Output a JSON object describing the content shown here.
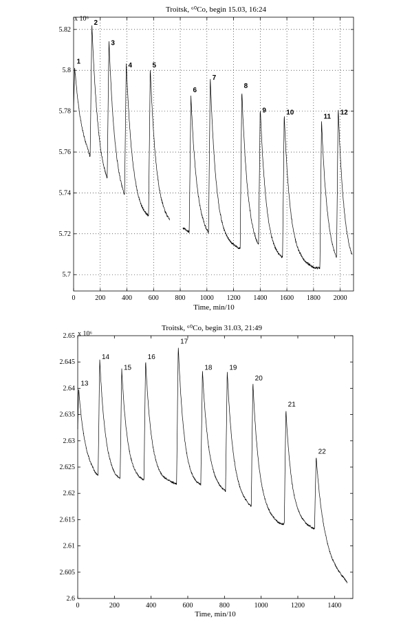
{
  "chart_data": [
    {
      "type": "line",
      "title": "Troitsk, ⁶⁰Co, begin 15.03, 16:24",
      "exponent_label": "x 10⁶",
      "xlabel": "Time, min/10",
      "ylabel": "",
      "xlim": [
        0,
        2100
      ],
      "ylim": [
        5.692,
        5.826
      ],
      "x_ticks": [
        0,
        200,
        400,
        600,
        800,
        1000,
        1200,
        1400,
        1600,
        1800,
        2000
      ],
      "y_ticks": [
        5.7,
        5.72,
        5.74,
        5.76,
        5.78,
        5.8,
        5.82
      ],
      "y_tick_labels": [
        "5.7",
        "5.72",
        "5.74",
        "5.76",
        "5.78",
        "5.8",
        "5.82"
      ],
      "grid": true,
      "gaps": [
        [
          720,
          820
        ]
      ],
      "baseline": [
        [
          0,
          5.767
        ],
        [
          100,
          5.758
        ],
        [
          200,
          5.745
        ],
        [
          300,
          5.738
        ],
        [
          400,
          5.732
        ],
        [
          500,
          5.728
        ],
        [
          600,
          5.726
        ],
        [
          700,
          5.724
        ],
        [
          840,
          5.722
        ],
        [
          900,
          5.719
        ],
        [
          1000,
          5.717
        ],
        [
          1100,
          5.714
        ],
        [
          1200,
          5.713
        ],
        [
          1300,
          5.711
        ],
        [
          1400,
          5.709
        ],
        [
          1500,
          5.707
        ],
        [
          1600,
          5.706
        ],
        [
          1700,
          5.705
        ],
        [
          1800,
          5.703
        ],
        [
          1900,
          5.703
        ],
        [
          2000,
          5.702
        ],
        [
          2090,
          5.701
        ]
      ],
      "peaks": [
        {
          "label": "1",
          "x": 8,
          "y": 5.802
        },
        {
          "label": "2",
          "x": 137,
          "y": 5.821
        },
        {
          "label": "3",
          "x": 265,
          "y": 5.811
        },
        {
          "label": "4",
          "x": 395,
          "y": 5.8
        },
        {
          "label": "5",
          "x": 575,
          "y": 5.8
        },
        {
          "label": "6",
          "x": 880,
          "y": 5.788
        },
        {
          "label": "7",
          "x": 1025,
          "y": 5.794
        },
        {
          "label": "8",
          "x": 1262,
          "y": 5.79
        },
        {
          "label": "9",
          "x": 1400,
          "y": 5.778
        },
        {
          "label": "10",
          "x": 1580,
          "y": 5.777
        },
        {
          "label": "11",
          "x": 1860,
          "y": 5.775
        },
        {
          "label": "12",
          "x": 1985,
          "y": 5.777
        }
      ]
    },
    {
      "type": "line",
      "title": "Troitsk, ⁶⁰Co, begin 31.03, 21:49",
      "exponent_label": "x 10⁶",
      "xlabel": "Time, min/10",
      "ylabel": "",
      "xlim": [
        0,
        1500
      ],
      "ylim": [
        2.6,
        2.65
      ],
      "x_ticks": [
        0,
        200,
        400,
        600,
        800,
        1000,
        1200,
        1400
      ],
      "y_ticks": [
        2.6,
        2.605,
        2.61,
        2.615,
        2.62,
        2.625,
        2.63,
        2.635,
        2.64,
        2.645,
        2.65
      ],
      "y_tick_labels": [
        "2.6",
        "2.605",
        "2.61",
        "2.615",
        "2.62",
        "2.625",
        "2.63",
        "2.635",
        "2.64",
        "2.645",
        "2.65"
      ],
      "grid": false,
      "gaps": [],
      "baseline": [
        [
          0,
          2.626
        ],
        [
          100,
          2.623
        ],
        [
          200,
          2.622
        ],
        [
          300,
          2.622
        ],
        [
          400,
          2.622
        ],
        [
          500,
          2.622
        ],
        [
          600,
          2.621
        ],
        [
          700,
          2.621
        ],
        [
          800,
          2.62
        ],
        [
          900,
          2.618
        ],
        [
          1000,
          2.616
        ],
        [
          1100,
          2.614
        ],
        [
          1200,
          2.614
        ],
        [
          1300,
          2.613
        ],
        [
          1380,
          2.607
        ],
        [
          1420,
          2.605
        ],
        [
          1470,
          2.603
        ]
      ],
      "peaks": [
        {
          "label": "13",
          "x": 5,
          "y": 2.64
        },
        {
          "label": "14",
          "x": 120,
          "y": 2.645
        },
        {
          "label": "15",
          "x": 240,
          "y": 2.643
        },
        {
          "label": "16",
          "x": 370,
          "y": 2.645
        },
        {
          "label": "17",
          "x": 548,
          "y": 2.648
        },
        {
          "label": "18",
          "x": 680,
          "y": 2.643
        },
        {
          "label": "19",
          "x": 815,
          "y": 2.643
        },
        {
          "label": "20",
          "x": 955,
          "y": 2.641
        },
        {
          "label": "21",
          "x": 1135,
          "y": 2.636
        },
        {
          "label": "22",
          "x": 1300,
          "y": 2.627
        }
      ]
    }
  ]
}
